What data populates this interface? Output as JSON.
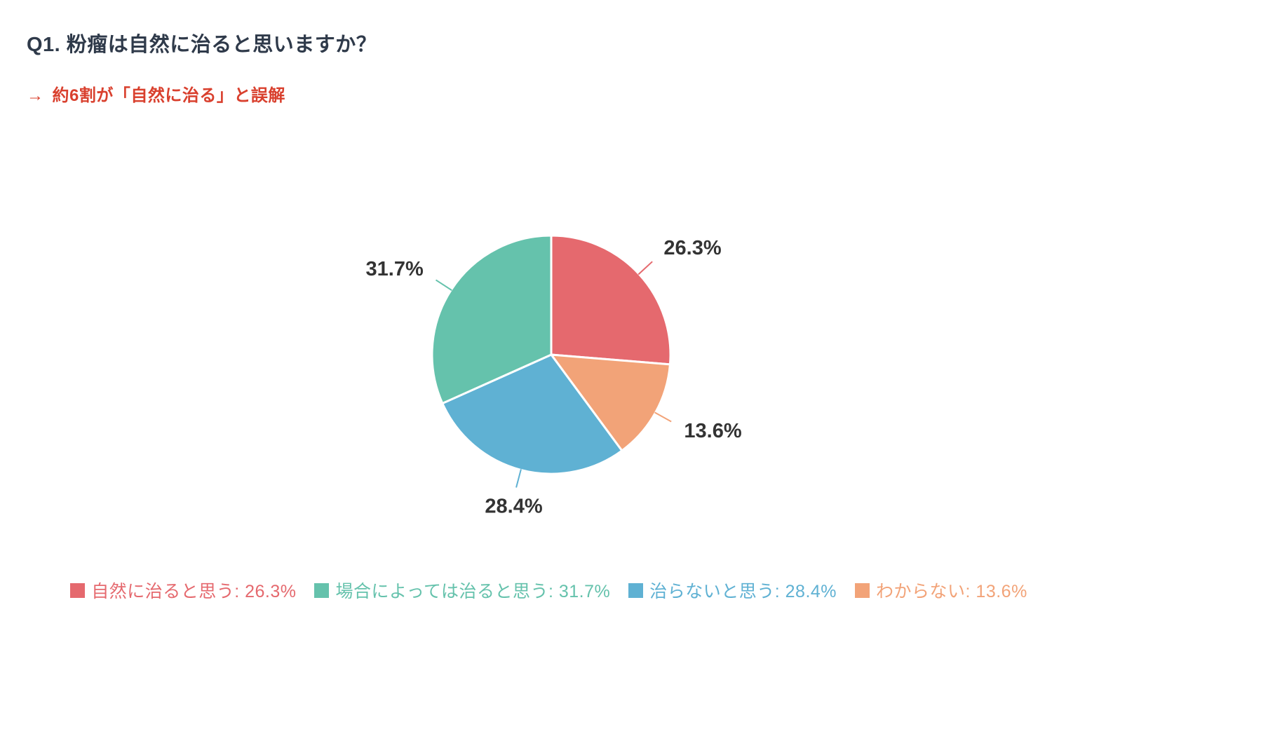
{
  "header": {
    "title": "Q1. 粉瘤は自然に治ると思いますか？",
    "insight_arrow": "→",
    "insight": "約6割が「自然に治る」と誤解"
  },
  "colors": {
    "background": "#ffffff",
    "title": "#2f3a4a",
    "insight": "#d9402e",
    "value_label": "#333333",
    "slice_border": "#ffffff"
  },
  "legend": {
    "separator": ": "
  },
  "chart_data": {
    "type": "pie",
    "title": "Q1. 粉瘤は自然に治ると思いますか？",
    "value_suffix": "%",
    "start_angle_deg": -90,
    "direction": "clockwise",
    "draw_order": [
      0,
      3,
      2,
      1
    ],
    "legend_position": "bottom",
    "series": [
      {
        "label": "自然に治ると思う",
        "value": 26.3,
        "color": "#e5696e"
      },
      {
        "label": "場合によっては治ると思う",
        "value": 31.7,
        "color": "#65c2ac"
      },
      {
        "label": "治らないと思う",
        "value": 28.4,
        "color": "#5fb1d3"
      },
      {
        "label": "わからない",
        "value": 13.6,
        "color": "#f2a378"
      }
    ]
  }
}
